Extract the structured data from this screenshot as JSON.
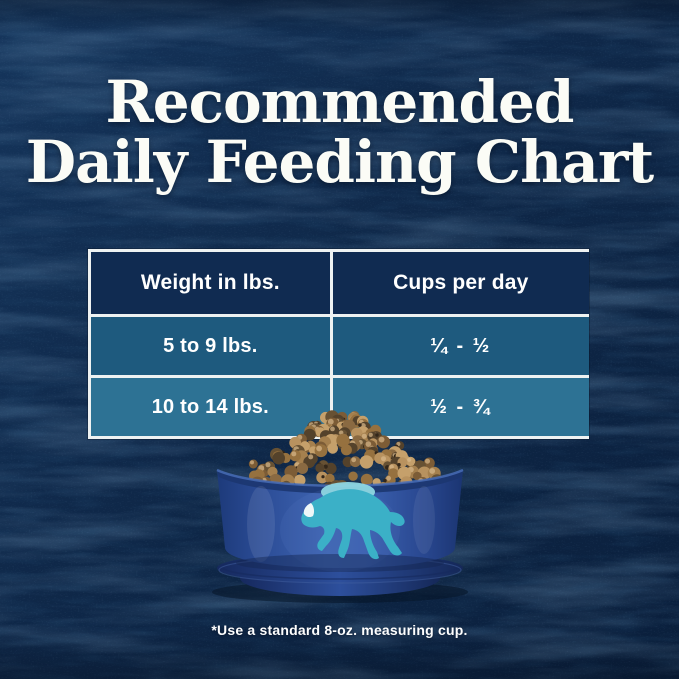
{
  "title": {
    "line1": "Recommended",
    "line2": "Daily Feeding Chart"
  },
  "chart_data": {
    "type": "table",
    "title": "Recommended Daily Feeding Chart",
    "columns": [
      "Weight in lbs.",
      "Cups per day"
    ],
    "rows": [
      [
        "5 to 9 lbs.",
        "¼ - ½"
      ],
      [
        "10 to 14 lbs.",
        "½ - ¾"
      ]
    ],
    "footnote": "*Use a standard 8-oz. measuring cup."
  },
  "bowl": {
    "logo": "buffalo"
  },
  "colors": {
    "background": "#10294b",
    "header_cell": "#102b51",
    "row_odd": "#1e5a7e",
    "row_even": "#2d7294",
    "table_border": "#eef2f2",
    "text": "#ffffff",
    "bowl_blue": "#2d4f9c",
    "buffalo_teal": "#3bb0c7",
    "kibble_brown": "#a5804e"
  }
}
